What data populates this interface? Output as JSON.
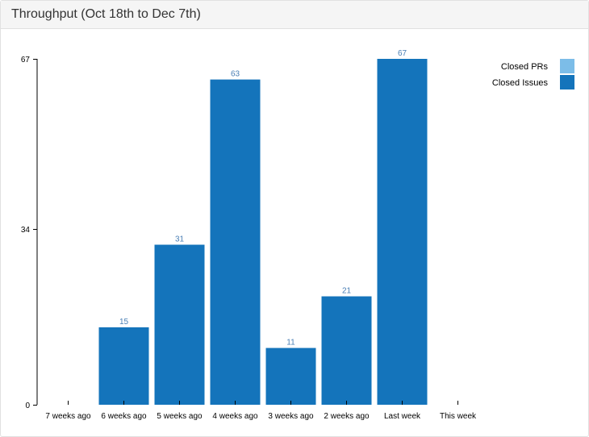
{
  "panel": {
    "title": "Throughput (Oct 18th to Dec 7th)"
  },
  "chart_data": {
    "type": "bar",
    "stacked": true,
    "categories": [
      "7 weeks ago",
      "6 weeks ago",
      "5 weeks ago",
      "4 weeks ago",
      "3 weeks ago",
      "2 weeks ago",
      "Last week",
      "This week"
    ],
    "series": [
      {
        "name": "Closed PRs",
        "color": "#7cbde8",
        "values": [
          0,
          0,
          0,
          0,
          0,
          0,
          0,
          0
        ]
      },
      {
        "name": "Closed Issues",
        "color": "#1474bb",
        "values": [
          0,
          15,
          31,
          63,
          11,
          21,
          67,
          0
        ]
      }
    ],
    "data_labels": [
      "",
      "15",
      "31",
      "63",
      "11",
      "21",
      "67",
      ""
    ],
    "yticks": [
      0,
      34,
      67
    ],
    "ylim": [
      0,
      67
    ],
    "legend": "top-right",
    "grid": false,
    "label_color": "#4a7fb5"
  }
}
